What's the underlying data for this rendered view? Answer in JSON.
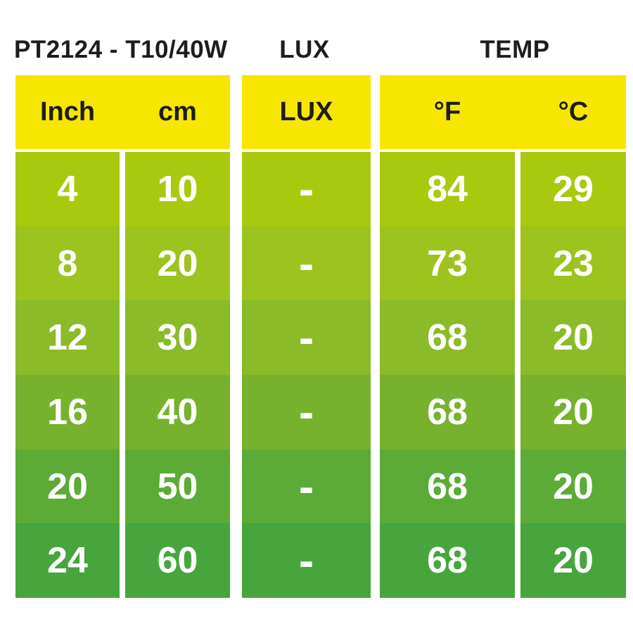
{
  "title": "PT2124 - T10/40W",
  "section_labels": {
    "lux": "LUX",
    "temp": "TEMP"
  },
  "header": {
    "inch": "Inch",
    "cm": "cm",
    "lux": "LUX",
    "fahrenheit": "°F",
    "celsius": "°C"
  },
  "rows": [
    {
      "inch": "4",
      "cm": "10",
      "lux": "-",
      "f": "84",
      "c": "29",
      "color": "#a9c90f"
    },
    {
      "inch": "8",
      "cm": "20",
      "lux": "-",
      "f": "73",
      "c": "23",
      "color": "#9cc31e"
    },
    {
      "inch": "12",
      "cm": "30",
      "lux": "-",
      "f": "68",
      "c": "20",
      "color": "#8abb28"
    },
    {
      "inch": "16",
      "cm": "40",
      "lux": "-",
      "f": "68",
      "c": "20",
      "color": "#76b22e"
    },
    {
      "inch": "20",
      "cm": "50",
      "lux": "-",
      "f": "68",
      "c": "20",
      "color": "#5bab36"
    },
    {
      "inch": "24",
      "cm": "60",
      "lux": "-",
      "f": "68",
      "c": "20",
      "color": "#46a53d"
    }
  ],
  "colors": {
    "header_bg": "#f7e700",
    "header_text": "#1d1d1b",
    "row_text": "#ffffff",
    "background": "#ffffff"
  },
  "chart_data": {
    "type": "table",
    "title": "PT2124 - T10/40W",
    "section_headers": [
      "LUX",
      "TEMP"
    ],
    "columns": [
      "Inch",
      "cm",
      "LUX",
      "°F",
      "°C"
    ],
    "rows": [
      [
        "4",
        "10",
        "-",
        "84",
        "29"
      ],
      [
        "8",
        "20",
        "-",
        "73",
        "23"
      ],
      [
        "12",
        "30",
        "-",
        "68",
        "20"
      ],
      [
        "16",
        "40",
        "-",
        "68",
        "20"
      ],
      [
        "20",
        "50",
        "-",
        "68",
        "20"
      ],
      [
        "24",
        "60",
        "-",
        "68",
        "20"
      ]
    ]
  }
}
